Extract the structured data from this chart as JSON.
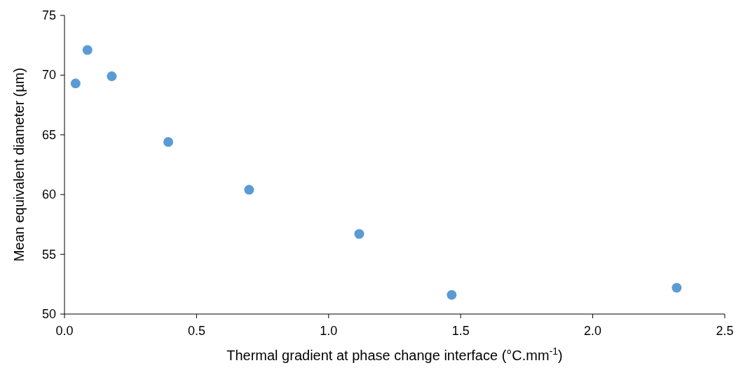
{
  "chart_data": {
    "type": "scatter",
    "xlabel": "Thermal gradient at phase change interface (°C.mm$^{-1}$)",
    "ylabel": "Mean equivalent diameter (µm)",
    "x": [
      0.042,
      0.087,
      0.179,
      0.393,
      0.699,
      1.116,
      1.466,
      2.318
    ],
    "series": [
      {
        "color": "#5b9bd5",
        "values": [
          69.3,
          72.1,
          69.9,
          64.4,
          60.4,
          56.7,
          51.6,
          52.2
        ]
      }
    ],
    "xlim": [
      0,
      2.5
    ],
    "xticks": [
      {
        "value": 0,
        "label": "0.0"
      },
      {
        "value": 0.5,
        "label": "0.5"
      },
      {
        "value": 1,
        "label": "1.0"
      },
      {
        "value": 1.5,
        "label": "1.5"
      },
      {
        "value": 2,
        "label": "2.0"
      },
      {
        "value": 2.5,
        "label": "2.5"
      }
    ],
    "ylim": [
      50,
      75
    ],
    "yticks": [
      50,
      55,
      60,
      65,
      70,
      75
    ],
    "marker": "circle"
  }
}
